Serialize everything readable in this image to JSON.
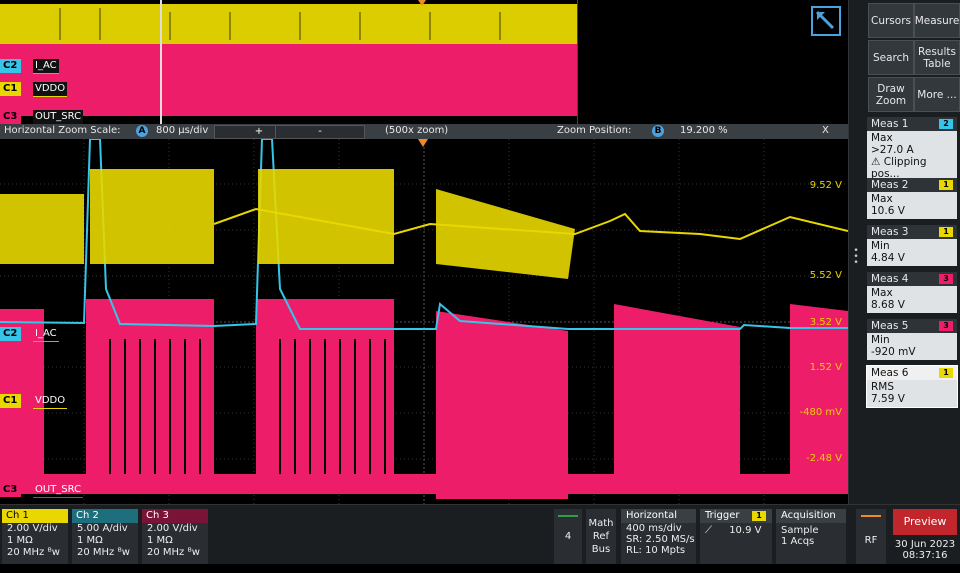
{
  "overview": {
    "ch_labels": [
      {
        "num": "C2",
        "name": "I_AC",
        "color": "#36c5e8"
      },
      {
        "num": "C1",
        "name": "VDDO",
        "color": "#e8d800"
      },
      {
        "num": "C3",
        "name": "OUT_SRC",
        "color": "#ee1d6a"
      }
    ]
  },
  "zoombar": {
    "scale_label": "Horizontal Zoom Scale:",
    "scale_marker": "A",
    "scale_value": "800 µs/div",
    "plus": "+",
    "minus": "-",
    "zoom_factor": "(500x zoom)",
    "position_label": "Zoom Position:",
    "position_marker": "B",
    "position_value": "19.200 %",
    "close": "X"
  },
  "zoom": {
    "ch_labels": [
      {
        "num": "C2",
        "name": "I_AC",
        "color": "#36c5e8"
      },
      {
        "num": "C1",
        "name": "VDDO",
        "color": "#e8d800"
      },
      {
        "num": "C3",
        "name": "OUT_SRC",
        "color": "#ee1d6a"
      }
    ],
    "volt_labels": [
      "9.52 V",
      "5.52 V",
      "3.52 V",
      "1.52 V",
      "-480 mV",
      "-2.48 V"
    ]
  },
  "side": {
    "buttons": [
      "Cursors",
      "Measure",
      "Search",
      "Results Table",
      "Draw Zoom",
      "More ..."
    ],
    "measurements": [
      {
        "title": "Meas 1",
        "ch": "2",
        "color": "#36c5e8",
        "lines": [
          "Max",
          ">27.0 A",
          "⚠ Clipping pos..."
        ]
      },
      {
        "title": "Meas 2",
        "ch": "1",
        "color": "#e8d800",
        "lines": [
          "Max",
          "10.6 V"
        ]
      },
      {
        "title": "Meas 3",
        "ch": "1",
        "color": "#e8d800",
        "lines": [
          "Min",
          "4.84 V"
        ]
      },
      {
        "title": "Meas 4",
        "ch": "3",
        "color": "#ee1d6a",
        "lines": [
          "Max",
          "8.68 V"
        ]
      },
      {
        "title": "Meas 5",
        "ch": "3",
        "color": "#ee1d6a",
        "lines": [
          "Min",
          "-920 mV"
        ]
      },
      {
        "title": "Meas 6",
        "ch": "1",
        "color": "#e8d800",
        "lines": [
          "RMS",
          "7.59 V"
        ]
      }
    ]
  },
  "bottom": {
    "channels": [
      {
        "name": "Ch 1",
        "color": "#e8d800",
        "lines": [
          "2.00 V/div",
          "1 MΩ",
          "20 MHz ᴮw"
        ]
      },
      {
        "name": "Ch 2",
        "color": "#36c5e8",
        "lines": [
          "5.00 A/div",
          "1 MΩ",
          "20 MHz ᴮw"
        ]
      },
      {
        "name": "Ch 3",
        "color": "#ee1d6a",
        "lines": [
          "2.00 V/div",
          "1 MΩ",
          "20 MHz ᴮw"
        ]
      }
    ],
    "count": "4",
    "math": [
      "Math",
      "Ref",
      "Bus"
    ],
    "horizontal": {
      "title": "Horizontal",
      "lines": [
        "400 ms/div",
        "SR: 2.50 MS/s",
        "RL: 10 Mpts"
      ]
    },
    "trigger": {
      "title": "Trigger",
      "ch": "1",
      "level": "10.9 V"
    },
    "acquisition": {
      "title": "Acquisition",
      "lines": [
        "Sample",
        "1 Acqs"
      ]
    },
    "rf": "RF",
    "preview": "Preview",
    "date": "30 Jun 2023",
    "time": "08:37:16"
  }
}
